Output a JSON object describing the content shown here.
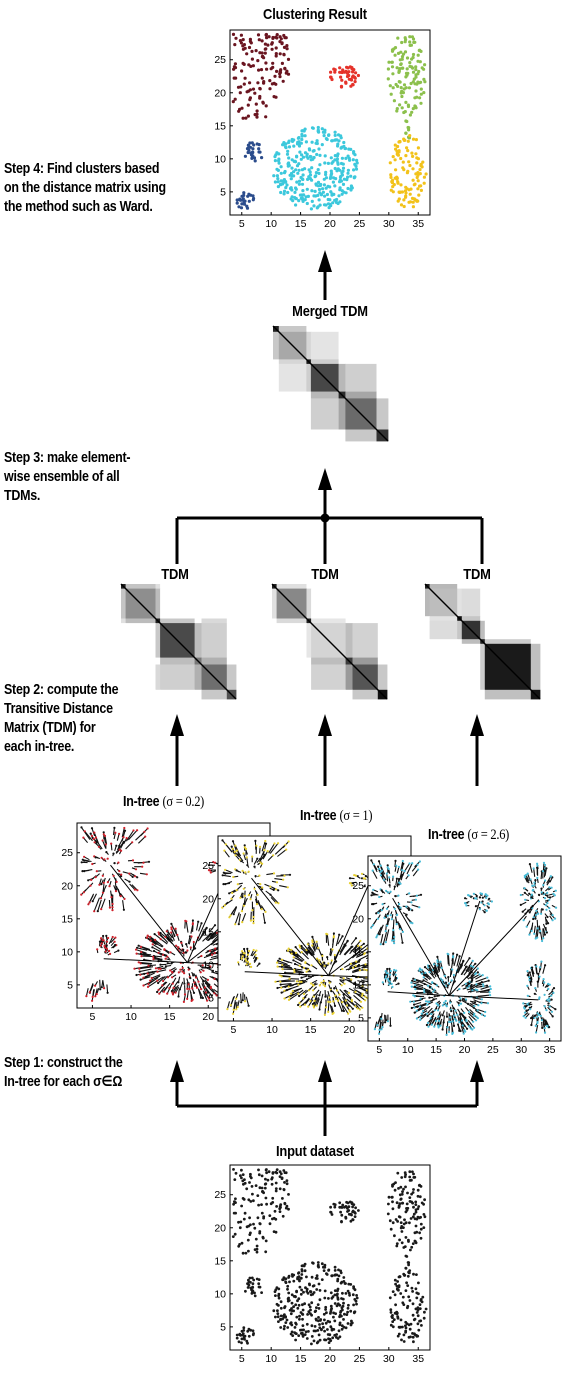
{
  "steps": {
    "step4": "Step 4: Find clusters based on the distance matrix using the method such as Ward.",
    "step3": "Step 3: make element-wise ensemble of all TDMs.",
    "step2": "Step 2: compute the Transitive Distance Matrix (TDM) for each in-tree.",
    "step1": "Step 1: construct the In-tree for each σ∈Ω"
  },
  "titles": {
    "clustering_result": "Clustering Result",
    "merged_tdm": "Merged TDM",
    "tdm": "TDM",
    "input_dataset": "Input dataset"
  },
  "intrees": [
    {
      "label": "In-tree",
      "sigma": "(σ = 0.2)"
    },
    {
      "label": "In-tree",
      "sigma": "(σ = 1)"
    },
    {
      "label": "In-tree",
      "sigma": "(σ = 2.6)"
    }
  ],
  "axes": {
    "x_ticks": [
      "5",
      "10",
      "15",
      "20",
      "25",
      "30",
      "35"
    ],
    "y_ticks": [
      "5",
      "10",
      "15",
      "20",
      "25"
    ],
    "intree_x_ticks": [
      "5",
      "10",
      "15",
      "20",
      "25"
    ]
  },
  "colors": {
    "cluster_dark_red": "#6a1520",
    "cluster_red": "#e5322a",
    "cluster_green": "#8cc04c",
    "cluster_navy": "#2b4c8c",
    "cluster_cyan": "#3cc8dc",
    "cluster_yellow": "#f2c21a",
    "intree_edge": "#111111",
    "intree_leaf_red": "#d0202a",
    "intree_leaf_yellow": "#e8d030",
    "intree_leaf_cyan": "#46bcd8"
  }
}
